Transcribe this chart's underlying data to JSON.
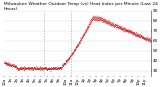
{
  "title": "Milwaukee Weather Outdoor Temp (vs) Heat Index per Minute (Last 24 Hours)",
  "background_color": "#ffffff",
  "line_color": "#cc0000",
  "ylim": [
    25,
    90
  ],
  "ytick_values": [
    30,
    40,
    50,
    60,
    70,
    80,
    90
  ],
  "ylabel_fontsize": 3.0,
  "xlabel_fontsize": 2.8,
  "title_fontsize": 3.2,
  "vline_x": [
    0.27,
    0.46
  ],
  "vline_color": "#aaaaaa",
  "grid_color": "#dddddd",
  "xtick_labels": [
    "12a",
    "1a",
    "2a",
    "3a",
    "4a",
    "5a",
    "6a",
    "7a",
    "8a",
    "9a",
    "10a",
    "11a",
    "12p",
    "1p",
    "2p",
    "3p",
    "4p",
    "5p",
    "6p",
    "7p",
    "8p",
    "9p",
    "10p",
    "11p"
  ],
  "noise_seed": 7
}
